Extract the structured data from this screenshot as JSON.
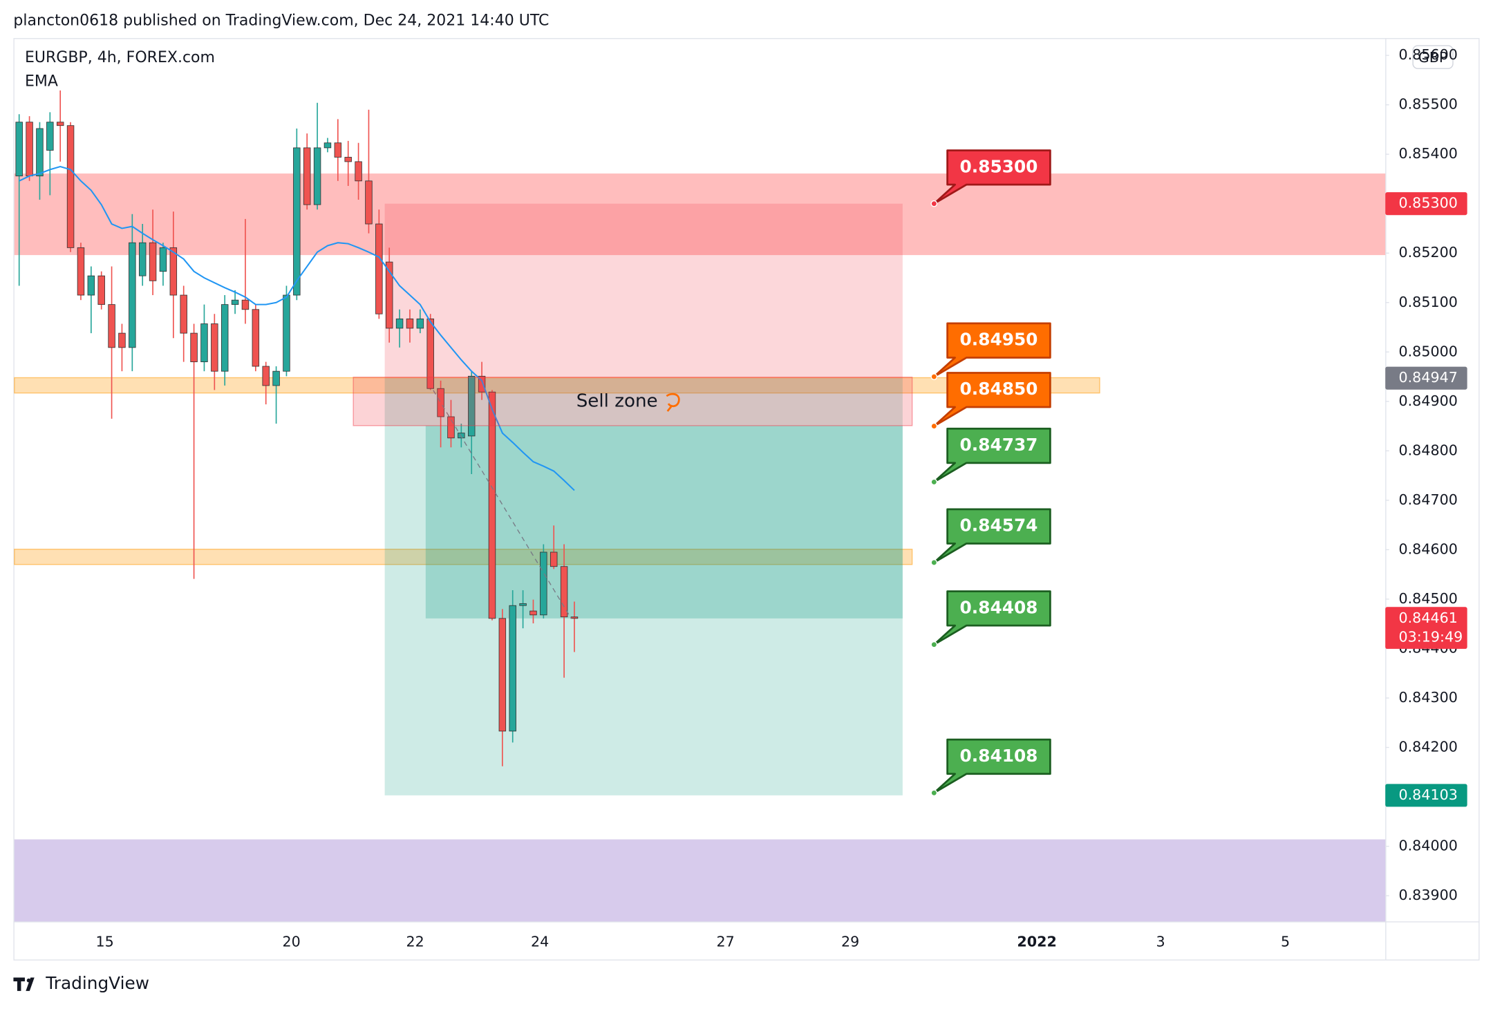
{
  "header": {
    "publisher": "plancton0618 published on TradingView.com, Dec 24, 2021 14:40 UTC",
    "footer": "TradingView"
  },
  "chart_data": {
    "type": "candlestick",
    "title": "EURGBP, 4h, FOREX.com",
    "indicator": "EMA",
    "currency": "GBP",
    "up_color": "#26a69a",
    "down_color": "#ef5350",
    "open": [
      0.85356,
      0.85465,
      0.85356,
      0.85408,
      0.85465,
      0.85458,
      0.85211,
      0.85115,
      0.85154,
      0.85096,
      0.85038,
      0.85009,
      0.85154,
      0.85221,
      0.85163,
      0.85211,
      0.85115,
      0.85038,
      0.8498,
      0.85057,
      0.84961,
      0.85096,
      0.85105,
      0.85086,
      0.84971,
      0.84932,
      0.84961,
      0.85115,
      0.85413,
      0.85298,
      0.85413,
      0.85423,
      0.85394,
      0.85385,
      0.85346,
      0.85259,
      0.85182,
      0.85048,
      0.85067,
      0.85048,
      0.85067,
      0.84926,
      0.84869,
      0.84826,
      0.8483,
      0.84951,
      0.84919,
      0.84461,
      0.84233,
      0.84487,
      0.84476,
      0.84468,
      0.84595,
      0.84566,
      0.84464
    ],
    "high": [
      0.85481,
      0.85477,
      0.85465,
      0.85485,
      0.85529,
      0.85465,
      0.85221,
      0.85173,
      0.85163,
      0.85173,
      0.85057,
      0.85279,
      0.85259,
      0.85288,
      0.85221,
      0.85284,
      0.85134,
      0.85057,
      0.85096,
      0.85077,
      0.85115,
      0.85125,
      0.85269,
      0.85096,
      0.8498,
      0.84971,
      0.85134,
      0.85452,
      0.85442,
      0.85504,
      0.85433,
      0.85471,
      0.85427,
      0.85423,
      0.8549,
      0.85288,
      0.85211,
      0.85086,
      0.85086,
      0.85086,
      0.85077,
      0.84942,
      0.84903,
      0.84855,
      0.84961,
      0.8498,
      0.84923,
      0.8448,
      0.84518,
      0.84518,
      0.84499,
      0.84611,
      0.84649,
      0.84611,
      0.84495
    ],
    "low": [
      0.85134,
      0.85346,
      0.85308,
      0.85317,
      0.85385,
      0.85202,
      0.85105,
      0.85038,
      0.85086,
      0.84865,
      0.84961,
      0.84961,
      0.85134,
      0.85115,
      0.85134,
      0.85028,
      0.8498,
      0.84541,
      0.84961,
      0.84923,
      0.84932,
      0.85077,
      0.85057,
      0.84961,
      0.84894,
      0.84855,
      0.84951,
      0.85105,
      0.85288,
      0.85288,
      0.85404,
      0.85346,
      0.85336,
      0.85308,
      0.8524,
      0.85067,
      0.85019,
      0.85009,
      0.85019,
      0.85038,
      0.84923,
      0.84807,
      0.84807,
      0.84807,
      0.84753,
      0.84903,
      0.84457,
      0.84162,
      0.8421,
      0.84441,
      0.84451,
      0.84461,
      0.84561,
      0.84341,
      0.84393
    ],
    "close": [
      0.85465,
      0.85356,
      0.85452,
      0.85465,
      0.85458,
      0.85211,
      0.85115,
      0.85154,
      0.85096,
      0.85009,
      0.85009,
      0.85221,
      0.85221,
      0.85144,
      0.85211,
      0.85115,
      0.85038,
      0.8498,
      0.85057,
      0.84961,
      0.85096,
      0.85105,
      0.85086,
      0.84971,
      0.84932,
      0.84961,
      0.85115,
      0.85413,
      0.85298,
      0.85413,
      0.85423,
      0.85394,
      0.85385,
      0.85346,
      0.85259,
      0.85077,
      0.85048,
      0.85067,
      0.85048,
      0.85067,
      0.84926,
      0.84869,
      0.84826,
      0.84836,
      0.84951,
      0.84919,
      0.84461,
      0.84233,
      0.84487,
      0.84491,
      0.84468,
      0.84595,
      0.84566,
      0.84464,
      0.84461
    ],
    "ema": {
      "color": "#2196f3",
      "values": [
        0.85346,
        0.85356,
        0.85361,
        0.85369,
        0.85375,
        0.85369,
        0.85346,
        0.85327,
        0.85298,
        0.85259,
        0.8525,
        0.85254,
        0.8524,
        0.85227,
        0.85215,
        0.85202,
        0.85188,
        0.85163,
        0.8515,
        0.8514,
        0.8513,
        0.85121,
        0.85111,
        0.85096,
        0.85096,
        0.851,
        0.85111,
        0.85144,
        0.85173,
        0.85202,
        0.85215,
        0.85221,
        0.85219,
        0.85211,
        0.85202,
        0.85192,
        0.85163,
        0.85134,
        0.85115,
        0.85096,
        0.85061,
        0.85034,
        0.85009,
        0.84984,
        0.84961,
        0.84942,
        0.84884,
        0.84836,
        0.84817,
        0.84797,
        0.84778,
        0.84769,
        0.84759,
        0.8474,
        0.8472
      ]
    },
    "ylim": [
      0.83848,
      0.85635
    ],
    "yticks": [
      {
        "value": 0.856,
        "label": "0.85600"
      },
      {
        "value": 0.855,
        "label": "0.85500"
      },
      {
        "value": 0.854,
        "label": "0.85400"
      },
      {
        "value": 0.853,
        "label": "0.85300"
      },
      {
        "value": 0.852,
        "label": "0.85200"
      },
      {
        "value": 0.851,
        "label": "0.85100"
      },
      {
        "value": 0.85,
        "label": "0.85000"
      },
      {
        "value": 0.849,
        "label": "0.84900"
      },
      {
        "value": 0.848,
        "label": "0.84800"
      },
      {
        "value": 0.847,
        "label": "0.84700"
      },
      {
        "value": 0.846,
        "label": "0.84600"
      },
      {
        "value": 0.845,
        "label": "0.84500"
      },
      {
        "value": 0.844,
        "label": "0.84400"
      },
      {
        "value": 0.843,
        "label": "0.84300"
      },
      {
        "value": 0.842,
        "label": "0.84200"
      },
      {
        "value": 0.841,
        "label": "0.84100"
      },
      {
        "value": 0.84,
        "label": "0.84000"
      },
      {
        "value": 0.839,
        "label": "0.83900"
      }
    ],
    "xticks": [
      "15",
      "20",
      "22",
      "24",
      "27",
      "29",
      "2022",
      "3",
      "5"
    ],
    "grid": false,
    "zones": [
      {
        "range": [
          0.85196,
          0.85361
        ],
        "color": "rgba(255,82,82,0.38)"
      },
      {
        "range": [
          0.84917,
          0.84948
        ],
        "color": "rgba(255,167,38,0.35)"
      },
      {
        "range": [
          0.8457,
          0.84601
        ],
        "color": "rgba(255,167,38,0.35)"
      },
      {
        "range": [
          0.83848,
          0.84014
        ],
        "color": "rgba(149,117,205,0.38)"
      }
    ],
    "sell_zone": {
      "label": "Sell zone",
      "range": [
        0.84851,
        0.84949
      ]
    },
    "price_tags": [
      {
        "value": 0.853,
        "label": "0.85300",
        "color": "#f23645"
      },
      {
        "value": 0.84947,
        "label": "0.84947",
        "color": "#787b86"
      },
      {
        "value": 0.84461,
        "label": "0.84461",
        "sub": "03:19:49",
        "color": "#f23645"
      },
      {
        "value": 0.84103,
        "label": "0.84103",
        "color": "#089981"
      }
    ],
    "callouts": [
      {
        "value": 0.853,
        "label": "0.85300",
        "color": "#f23645",
        "border": "#a01818"
      },
      {
        "value": 0.8495,
        "label": "0.84950",
        "color": "#ff6d00",
        "border": "#c43e00"
      },
      {
        "value": 0.8485,
        "label": "0.84850",
        "color": "#ff6d00",
        "border": "#c43e00"
      },
      {
        "value": 0.84737,
        "label": "0.84737",
        "color": "#4caf50",
        "border": "#1b5e20"
      },
      {
        "value": 0.84574,
        "label": "0.84574",
        "color": "#4caf50",
        "border": "#1b5e20"
      },
      {
        "value": 0.84408,
        "label": "0.84408",
        "color": "#4caf50",
        "border": "#1b5e20"
      },
      {
        "value": 0.84108,
        "label": "0.84108",
        "color": "#4caf50",
        "border": "#1b5e20"
      }
    ]
  }
}
